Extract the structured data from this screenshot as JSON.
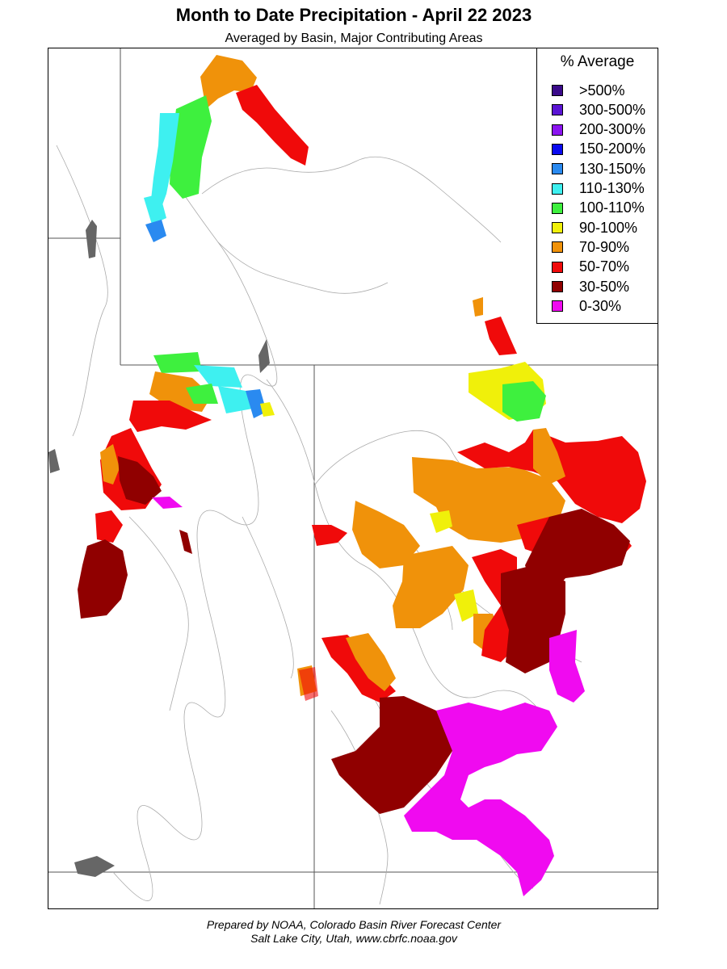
{
  "header": {
    "title": "Month to Date Precipitation - April 22 2023",
    "subtitle": "Averaged by Basin, Major Contributing Areas"
  },
  "legend": {
    "title": "% Average",
    "items": [
      {
        "label": ">500%",
        "color": "#3a0a8a"
      },
      {
        "label": "300-500%",
        "color": "#5a14d4"
      },
      {
        "label": "200-300%",
        "color": "#8a14f0"
      },
      {
        "label": "150-200%",
        "color": "#0a0af0"
      },
      {
        "label": "130-150%",
        "color": "#2a8af0"
      },
      {
        "label": "110-130%",
        "color": "#3ef0f0"
      },
      {
        "label": "100-110%",
        "color": "#3ef03e"
      },
      {
        "label": "90-100%",
        "color": "#f0f00a"
      },
      {
        "label": "70-90%",
        "color": "#f0920a"
      },
      {
        "label": "50-70%",
        "color": "#f00a0a"
      },
      {
        "label": "30-50%",
        "color": "#900000"
      },
      {
        "label": "0-30%",
        "color": "#f00af0"
      }
    ]
  },
  "footer": {
    "line1": "Prepared by NOAA, Colorado Basin River Forecast Center",
    "line2": "Salt Lake City, Utah, www.cbrfc.noaa.gov"
  }
}
